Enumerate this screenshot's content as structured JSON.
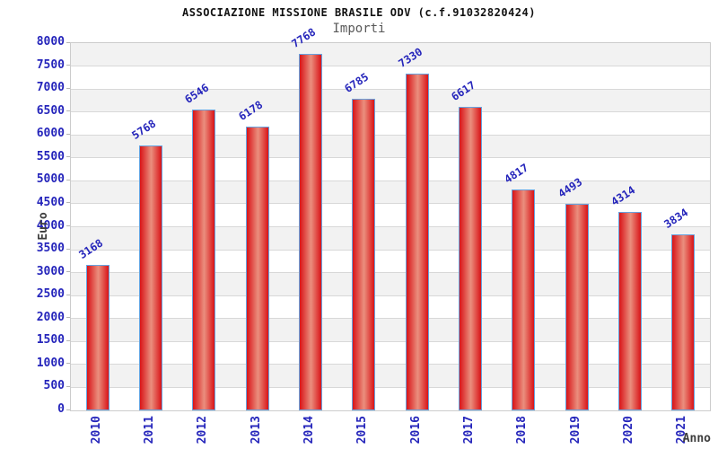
{
  "header": {
    "title": "ASSOCIAZIONE MISSIONE BRASILE ODV (c.f.91032820424)",
    "subtitle": "Importi"
  },
  "chart_data": {
    "type": "bar",
    "title": "ASSOCIAZIONE MISSIONE BRASILE ODV (c.f.91032820424)",
    "subtitle": "Importi",
    "categories": [
      "2010",
      "2011",
      "2012",
      "2013",
      "2014",
      "2015",
      "2016",
      "2017",
      "2018",
      "2019",
      "2020",
      "2021"
    ],
    "values": [
      3168,
      5768,
      6546,
      6178,
      7768,
      6785,
      7330,
      6617,
      4817,
      4493,
      4314,
      3834
    ],
    "xlabel": "Anno",
    "ylabel": "Euro",
    "ylim": [
      0,
      8000
    ],
    "ytick_step": 500,
    "yticks": [
      0,
      500,
      1000,
      1500,
      2000,
      2500,
      3000,
      3500,
      4000,
      4500,
      5000,
      5500,
      6000,
      6500,
      7000,
      7500,
      8000
    ],
    "grid": true,
    "legend": "none",
    "colors": {
      "label_blue": "#2525bb",
      "bar_edge_red": "#d91418",
      "bar_mid_highlight": "#ea8f7e",
      "bar_border_blue": "#66a3e0",
      "band_gray": "#f2f2f2",
      "gridline": "#d8d8d8",
      "tickmark": "#b5b5b5",
      "axis_text": "#3d3d3d",
      "title_text": "#111111",
      "subtitle_text": "#5a5a5a"
    }
  }
}
